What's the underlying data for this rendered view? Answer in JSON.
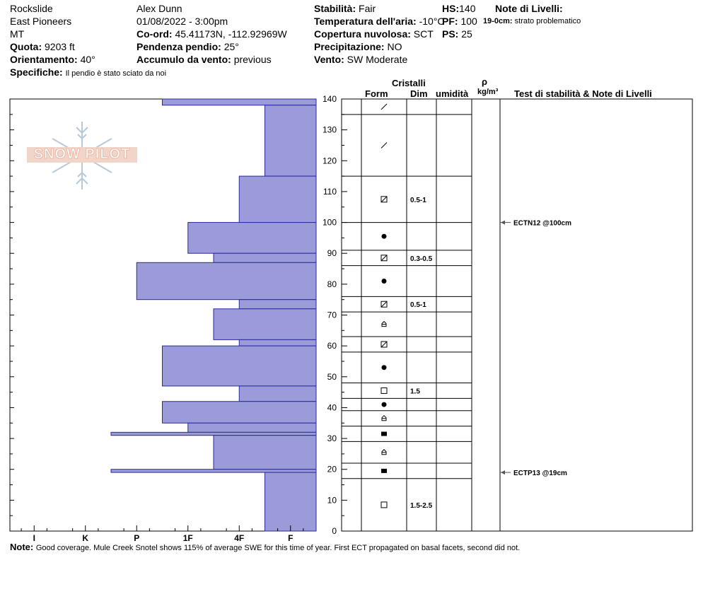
{
  "header": {
    "col1": [
      "Rockslide",
      "East Pioneers",
      "MT"
    ],
    "quota_label": "Quota:",
    "quota_value": "9203 ft",
    "orient_label": "Orientamento:",
    "orient_value": "40°",
    "observer": "Alex Dunn",
    "datetime": "01/08/2022 - 3:00pm",
    "coord_label": "Co-ord:",
    "coord_value": "45.41173N, -112.92969W",
    "slope_label": "Pendenza pendio:",
    "slope_value": "25°",
    "wind_load_label": "Accumulo da vento:",
    "wind_load_value": "previous",
    "stab_label": "Stabilità:",
    "stab_value": "Fair",
    "airtemp_label": "Temperatura dell'aria:",
    "airtemp_value": "-10°C",
    "cloud_label": "Copertura nuvolosa:",
    "cloud_value": "SCT",
    "precip_label": "Precipitazione:",
    "precip_value": "NO",
    "wind_label": "Vento:",
    "wind_value": "SW Moderate",
    "hs_label": "HS:",
    "hs_value": "140",
    "pf_label": "PF:",
    "pf_value": "100",
    "ps_label": "PS:",
    "ps_value": "25",
    "layer_notes_label": "Note di Livelli:",
    "layer_note_depth": "19-0cm:",
    "layer_note_text": "strato problematico",
    "specifics_label": "Specifiche:",
    "specifics_value": "Il pendio è stato sciato da noi"
  },
  "logo": {
    "text": "SNOW PILOT"
  },
  "columns": {
    "cristalli": "Cristalli",
    "form": "Form",
    "dim": "Dim",
    "umidita": "umidità",
    "rho": "ρ",
    "density_unit": "kg/m³",
    "tests": "Test di stabilità & Note di Livelli"
  },
  "footer": {
    "note_label": "Note:",
    "note_text": "Good coverage. Mule Creek Snotel shows 115% of average SWE for this time of year. First ECT propagated on basal facets, second did not."
  },
  "colors": {
    "bar_fill": "#9b9bd9",
    "bar_edge": "#2a2a9a",
    "arrow": "#555555"
  },
  "chart_data": {
    "type": "bar",
    "orientation": "horizontal",
    "y_label_unit": "cm",
    "ylim": [
      0,
      140
    ],
    "y_ticks": [
      0,
      10,
      20,
      30,
      40,
      50,
      60,
      70,
      80,
      90,
      100,
      110,
      120,
      130,
      140
    ],
    "hardness_ticks": [
      "I",
      "K",
      "P",
      "1F",
      "4F",
      "F"
    ],
    "hardness_scale": {
      "F": 1,
      "4F": 2,
      "1F": 3,
      "P": 4,
      "K": 5,
      "I": 6
    },
    "hardness_layers": [
      {
        "bottom": 138,
        "top": 140,
        "hardness": 3
      },
      {
        "bottom": 115,
        "top": 138,
        "hardness": 1
      },
      {
        "bottom": 100,
        "top": 115,
        "hardness": 1.5
      },
      {
        "bottom": 90,
        "top": 100,
        "hardness": 2.5
      },
      {
        "bottom": 87,
        "top": 90,
        "hardness": 2
      },
      {
        "bottom": 75,
        "top": 87,
        "hardness": 3.5
      },
      {
        "bottom": 72,
        "top": 75,
        "hardness": 1.5
      },
      {
        "bottom": 62,
        "top": 72,
        "hardness": 2
      },
      {
        "bottom": 60,
        "top": 62,
        "hardness": 1.5
      },
      {
        "bottom": 47,
        "top": 60,
        "hardness": 3
      },
      {
        "bottom": 42,
        "top": 47,
        "hardness": 1.5
      },
      {
        "bottom": 35,
        "top": 42,
        "hardness": 3
      },
      {
        "bottom": 32,
        "top": 35,
        "hardness": 2.5
      },
      {
        "bottom": 31,
        "top": 32,
        "hardness": 4
      },
      {
        "bottom": 20,
        "top": 31,
        "hardness": 2
      },
      {
        "bottom": 19,
        "top": 20,
        "hardness": 4
      },
      {
        "bottom": 0,
        "top": 19,
        "hardness": 1
      }
    ],
    "grain_layers": [
      {
        "bottom": 135,
        "top": 140,
        "form": "decomposing",
        "dim": ""
      },
      {
        "bottom": 115,
        "top": 135,
        "form": "decomposing",
        "dim": ""
      },
      {
        "bottom": 100,
        "top": 115,
        "form": "mixed",
        "dim": "0.5-1"
      },
      {
        "bottom": 91,
        "top": 100,
        "form": "round",
        "dim": ""
      },
      {
        "bottom": 86,
        "top": 91,
        "form": "mixed",
        "dim": "0.3-0.5"
      },
      {
        "bottom": 76,
        "top": 86,
        "form": "round",
        "dim": ""
      },
      {
        "bottom": 71,
        "top": 76,
        "form": "mixed",
        "dim": "0.5-1"
      },
      {
        "bottom": 63,
        "top": 71,
        "form": "depth-hoar",
        "dim": ""
      },
      {
        "bottom": 58,
        "top": 63,
        "form": "mixed",
        "dim": ""
      },
      {
        "bottom": 48,
        "top": 58,
        "form": "round",
        "dim": ""
      },
      {
        "bottom": 43,
        "top": 48,
        "form": "facet",
        "dim": "1.5"
      },
      {
        "bottom": 39,
        "top": 43,
        "form": "round",
        "dim": ""
      },
      {
        "bottom": 34,
        "top": 39,
        "form": "depth-hoar",
        "dim": ""
      },
      {
        "bottom": 29,
        "top": 34,
        "form": "rounding-facet",
        "dim": ""
      },
      {
        "bottom": 22,
        "top": 29,
        "form": "depth-hoar",
        "dim": ""
      },
      {
        "bottom": 17,
        "top": 22,
        "form": "rounding-facet",
        "dim": ""
      },
      {
        "bottom": 0,
        "top": 17,
        "form": "facet",
        "dim": "1.5-2.5"
      }
    ],
    "tests": [
      {
        "depth": 100,
        "label": "ECTN12 @100cm"
      },
      {
        "depth": 19,
        "label": "ECTP13 @19cm"
      }
    ]
  }
}
